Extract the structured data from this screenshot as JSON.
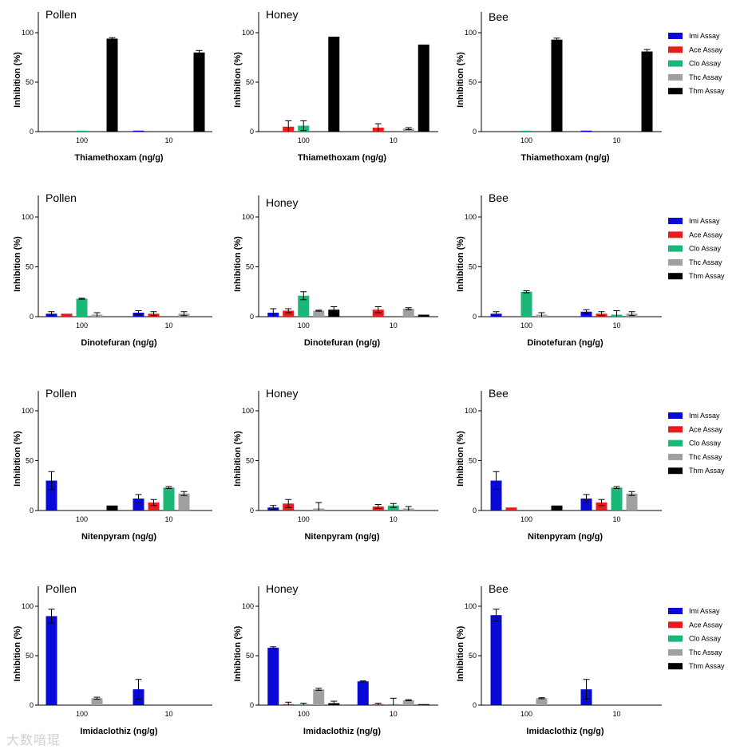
{
  "watermark": "大数喑琨",
  "colors": {
    "Imi Assay": "#0a0ad8",
    "Ace Assay": "#e81c1c",
    "Clo Assay": "#1ab877",
    "Thc Assay": "#a0a0a0",
    "Thm Assay": "#000000"
  },
  "chart_data": [
    {
      "type": "bar",
      "title": "Pollen",
      "xlabel": "Thiamethoxam (ng/g)",
      "ylabel": "Inhibition (%)",
      "ylim": [
        0,
        120
      ],
      "yticks": [
        0,
        50,
        100
      ],
      "categories": [
        "100",
        "10"
      ],
      "series": [
        {
          "name": "Imi Assay",
          "values": [
            0,
            1
          ],
          "errors": [
            0,
            0
          ]
        },
        {
          "name": "Ace Assay",
          "values": [
            0,
            0
          ],
          "errors": [
            0,
            0
          ]
        },
        {
          "name": "Clo Assay",
          "values": [
            1,
            0
          ],
          "errors": [
            0,
            0
          ]
        },
        {
          "name": "Thc Assay",
          "values": [
            0,
            0
          ],
          "errors": [
            0,
            0
          ]
        },
        {
          "name": "Thm Assay",
          "values": [
            94,
            80
          ],
          "errors": [
            1,
            2
          ]
        }
      ]
    },
    {
      "type": "bar",
      "title": "Honey",
      "xlabel": "Thiamethoxam (ng/g)",
      "ylabel": "Inhibition (%)",
      "ylim": [
        0,
        120
      ],
      "yticks": [
        0,
        50,
        100
      ],
      "categories": [
        "100",
        "10"
      ],
      "series": [
        {
          "name": "Imi Assay",
          "values": [
            0,
            0
          ],
          "errors": [
            0,
            0
          ]
        },
        {
          "name": "Ace Assay",
          "values": [
            5,
            4
          ],
          "errors": [
            6,
            4
          ]
        },
        {
          "name": "Clo Assay",
          "values": [
            6,
            0
          ],
          "errors": [
            5,
            0
          ]
        },
        {
          "name": "Thc Assay",
          "values": [
            0,
            3
          ],
          "errors": [
            0,
            1
          ]
        },
        {
          "name": "Thm Assay",
          "values": [
            96,
            88
          ],
          "errors": [
            0,
            0
          ]
        }
      ]
    },
    {
      "type": "bar",
      "title": "Bee",
      "xlabel": "Thiamethoxam (ng/g)",
      "ylabel": "Inhibition (%)",
      "ylim": [
        0,
        120
      ],
      "yticks": [
        0,
        50,
        100
      ],
      "categories": [
        "100",
        "10"
      ],
      "series": [
        {
          "name": "Imi Assay",
          "values": [
            0,
            1
          ],
          "errors": [
            0,
            0
          ]
        },
        {
          "name": "Ace Assay",
          "values": [
            0,
            0
          ],
          "errors": [
            0,
            0
          ]
        },
        {
          "name": "Clo Assay",
          "values": [
            1,
            0
          ],
          "errors": [
            0,
            0
          ]
        },
        {
          "name": "Thc Assay",
          "values": [
            0,
            0
          ],
          "errors": [
            0,
            0
          ]
        },
        {
          "name": "Thm Assay",
          "values": [
            93,
            81
          ],
          "errors": [
            1.5,
            2
          ]
        }
      ]
    },
    {
      "type": "bar",
      "title": "Pollen",
      "xlabel": "Dinotefuran (ng/g)",
      "ylabel": "Inhibition (%)",
      "ylim": [
        0,
        120
      ],
      "yticks": [
        0,
        50,
        100
      ],
      "categories": [
        "100",
        "10"
      ],
      "series": [
        {
          "name": "Imi Assay",
          "values": [
            3,
            4
          ],
          "errors": [
            2,
            2
          ]
        },
        {
          "name": "Ace Assay",
          "values": [
            3,
            3
          ],
          "errors": [
            0,
            2
          ]
        },
        {
          "name": "Clo Assay",
          "values": [
            18,
            0
          ],
          "errors": [
            0.5,
            0
          ]
        },
        {
          "name": "Thc Assay",
          "values": [
            2,
            3
          ],
          "errors": [
            2,
            2
          ]
        },
        {
          "name": "Thm Assay",
          "values": [
            0,
            0
          ],
          "errors": [
            0,
            0
          ]
        }
      ]
    },
    {
      "type": "bar",
      "title": "Honey",
      "xlabel": "Dinotefuran (ng/g)",
      "ylabel": "Inhibition (%)",
      "ylim": [
        0,
        120
      ],
      "yticks": [
        0,
        50,
        100
      ],
      "categories": [
        "100",
        "10"
      ],
      "series": [
        {
          "name": "Imi Assay",
          "values": [
            4,
            0
          ],
          "errors": [
            4,
            0
          ]
        },
        {
          "name": "Ace Assay",
          "values": [
            6,
            7
          ],
          "errors": [
            2,
            3
          ]
        },
        {
          "name": "Clo Assay",
          "values": [
            21,
            0
          ],
          "errors": [
            4,
            0
          ]
        },
        {
          "name": "Thc Assay",
          "values": [
            6,
            8
          ],
          "errors": [
            0.5,
            1
          ]
        },
        {
          "name": "Thm Assay",
          "values": [
            7,
            2
          ],
          "errors": [
            3,
            0
          ]
        }
      ]
    },
    {
      "type": "bar",
      "title": "Bee",
      "xlabel": "Dinotefuran (ng/g)",
      "ylabel": "Inhibition (%)",
      "ylim": [
        0,
        120
      ],
      "yticks": [
        0,
        50,
        100
      ],
      "categories": [
        "100",
        "10"
      ],
      "series": [
        {
          "name": "Imi Assay",
          "values": [
            3,
            5
          ],
          "errors": [
            2,
            2
          ]
        },
        {
          "name": "Ace Assay",
          "values": [
            0,
            3
          ],
          "errors": [
            0,
            2
          ]
        },
        {
          "name": "Clo Assay",
          "values": [
            25,
            2
          ],
          "errors": [
            1,
            4
          ]
        },
        {
          "name": "Thc Assay",
          "values": [
            2,
            3
          ],
          "errors": [
            2,
            2
          ]
        },
        {
          "name": "Thm Assay",
          "values": [
            0,
            0
          ],
          "errors": [
            0,
            0
          ]
        }
      ]
    },
    {
      "type": "bar",
      "title": "Pollen",
      "xlabel": "Nitenpyram (ng/g)",
      "ylabel": "Inhibition (%)",
      "ylim": [
        0,
        120
      ],
      "yticks": [
        0,
        50,
        100
      ],
      "categories": [
        "100",
        "10"
      ],
      "series": [
        {
          "name": "Imi Assay",
          "values": [
            30,
            12
          ],
          "errors": [
            9,
            4
          ]
        },
        {
          "name": "Ace Assay",
          "values": [
            0,
            8
          ],
          "errors": [
            0,
            3
          ]
        },
        {
          "name": "Clo Assay",
          "values": [
            0,
            23
          ],
          "errors": [
            0,
            1
          ]
        },
        {
          "name": "Thc Assay",
          "values": [
            0,
            17
          ],
          "errors": [
            0,
            2
          ]
        },
        {
          "name": "Thm Assay",
          "values": [
            5,
            0
          ],
          "errors": [
            0,
            0
          ]
        }
      ]
    },
    {
      "type": "bar",
      "title": "Honey",
      "xlabel": "Nitenpyram (ng/g)",
      "ylabel": "Inhibition (%)",
      "ylim": [
        0,
        120
      ],
      "yticks": [
        0,
        50,
        100
      ],
      "categories": [
        "100",
        "10"
      ],
      "series": [
        {
          "name": "Imi Assay",
          "values": [
            3,
            0
          ],
          "errors": [
            2,
            0
          ]
        },
        {
          "name": "Ace Assay",
          "values": [
            7,
            4
          ],
          "errors": [
            4,
            2
          ]
        },
        {
          "name": "Clo Assay",
          "values": [
            0,
            5
          ],
          "errors": [
            0,
            2
          ]
        },
        {
          "name": "Thc Assay",
          "values": [
            2,
            2
          ],
          "errors": [
            6,
            2
          ]
        },
        {
          "name": "Thm Assay",
          "values": [
            0,
            0
          ],
          "errors": [
            0,
            0
          ]
        }
      ]
    },
    {
      "type": "bar",
      "title": "Bee",
      "xlabel": "Nitenpyram (ng/g)",
      "ylabel": "Inhibition (%)",
      "ylim": [
        0,
        120
      ],
      "yticks": [
        0,
        50,
        100
      ],
      "categories": [
        "100",
        "10"
      ],
      "series": [
        {
          "name": "Imi Assay",
          "values": [
            30,
            12
          ],
          "errors": [
            9,
            4
          ]
        },
        {
          "name": "Ace Assay",
          "values": [
            3,
            8
          ],
          "errors": [
            0,
            3
          ]
        },
        {
          "name": "Clo Assay",
          "values": [
            0,
            23
          ],
          "errors": [
            0,
            1
          ]
        },
        {
          "name": "Thc Assay",
          "values": [
            0,
            17
          ],
          "errors": [
            0,
            2
          ]
        },
        {
          "name": "Thm Assay",
          "values": [
            5,
            0
          ],
          "errors": [
            0,
            0
          ]
        }
      ]
    },
    {
      "type": "bar",
      "title": "Pollen",
      "xlabel": "Imidaclothiz (ng/g)",
      "ylabel": "Inhibition (%)",
      "ylim": [
        0,
        120
      ],
      "yticks": [
        0,
        50,
        100
      ],
      "categories": [
        "100",
        "10"
      ],
      "series": [
        {
          "name": "Imi Assay",
          "values": [
            90,
            16
          ],
          "errors": [
            7,
            10
          ]
        },
        {
          "name": "Ace Assay",
          "values": [
            0,
            0
          ],
          "errors": [
            0,
            0
          ]
        },
        {
          "name": "Clo Assay",
          "values": [
            0,
            0
          ],
          "errors": [
            0,
            0
          ]
        },
        {
          "name": "Thc Assay",
          "values": [
            7,
            0
          ],
          "errors": [
            1,
            0
          ]
        },
        {
          "name": "Thm Assay",
          "values": [
            0,
            0
          ],
          "errors": [
            0,
            0
          ]
        }
      ]
    },
    {
      "type": "bar",
      "title": "Honey",
      "xlabel": "Imidaclothiz (ng/g)",
      "ylabel": "Inhibition (%)",
      "ylim": [
        0,
        120
      ],
      "yticks": [
        0,
        50,
        100
      ],
      "categories": [
        "100",
        "10"
      ],
      "series": [
        {
          "name": "Imi Assay",
          "values": [
            58,
            24
          ],
          "errors": [
            1,
            0.5
          ]
        },
        {
          "name": "Ace Assay",
          "values": [
            1,
            1
          ],
          "errors": [
            2,
            1
          ]
        },
        {
          "name": "Clo Assay",
          "values": [
            1,
            1
          ],
          "errors": [
            1,
            6
          ]
        },
        {
          "name": "Thc Assay",
          "values": [
            16,
            5
          ],
          "errors": [
            1,
            0.5
          ]
        },
        {
          "name": "Thm Assay",
          "values": [
            2,
            1
          ],
          "errors": [
            2,
            0
          ]
        }
      ]
    },
    {
      "type": "bar",
      "title": "Bee",
      "xlabel": "Imidaclothiz (ng/g)",
      "ylabel": "Inhibition (%)",
      "ylim": [
        0,
        120
      ],
      "yticks": [
        0,
        50,
        100
      ],
      "categories": [
        "100",
        "10"
      ],
      "series": [
        {
          "name": "Imi Assay",
          "values": [
            91,
            16
          ],
          "errors": [
            6,
            10
          ]
        },
        {
          "name": "Ace Assay",
          "values": [
            0,
            0
          ],
          "errors": [
            0,
            0
          ]
        },
        {
          "name": "Clo Assay",
          "values": [
            0,
            0
          ],
          "errors": [
            0,
            0
          ]
        },
        {
          "name": "Thc Assay",
          "values": [
            7,
            0
          ],
          "errors": [
            0.5,
            0
          ]
        },
        {
          "name": "Thm Assay",
          "values": [
            0,
            0
          ],
          "errors": [
            0,
            0
          ]
        }
      ]
    }
  ],
  "legends": [
    {
      "row": 0,
      "items": [
        "Imi Assay",
        "Ace Assay",
        "Clo Assay",
        "Thc Assay",
        "Thm Assay"
      ]
    },
    {
      "row": 1,
      "items": [
        "Imi Assay",
        "Ace Assay",
        "Clo Assay",
        "Thc Assay",
        "Thm Assay"
      ]
    },
    {
      "row": 2,
      "items": [
        "Imi Assay",
        "Ace Assay",
        "Clo Assay",
        "Thc Assay",
        "Thm Assay"
      ]
    },
    {
      "row": 3,
      "items": [
        "Imi Assay",
        "Ace Assay",
        "Clo Assay",
        "Thc Assay",
        "Thm Assay"
      ]
    }
  ]
}
